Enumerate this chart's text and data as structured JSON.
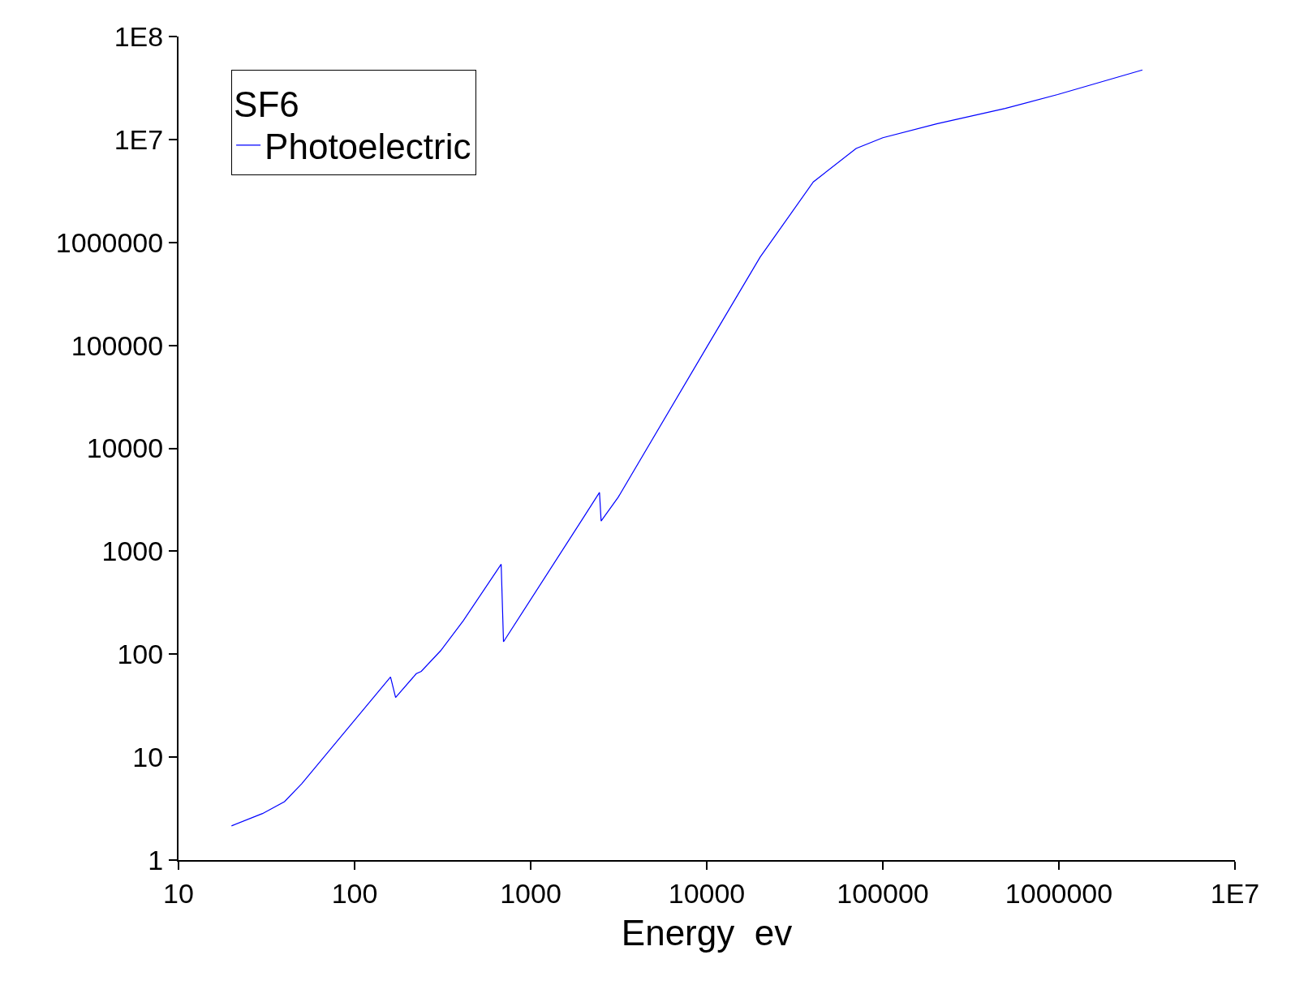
{
  "chart_data": {
    "type": "line",
    "xlabel": "Energy  ev",
    "legend_title": "SF6",
    "legend": "top left",
    "log": "xy",
    "marker": "none",
    "line_style": "solid",
    "xlim": [
      10,
      10000000
    ],
    "ylim": [
      1,
      100000000
    ],
    "xticks": [
      10,
      100,
      1000,
      10000,
      100000,
      1000000,
      {
        "value": 10000000,
        "label": "1E7"
      }
    ],
    "yticks": [
      1,
      10,
      100,
      1000,
      10000,
      100000,
      1000000,
      {
        "value": 10000000,
        "label": "1E7"
      },
      {
        "value": 100000000,
        "label": "1E8"
      }
    ],
    "series": [
      {
        "name": "Photoelectric",
        "color": "#0000ff",
        "x": [
          20,
          30,
          40,
          50,
          160,
          171,
          224,
          239,
          308,
          414,
          680,
          701,
          1950,
          2460,
          2513,
          3140,
          10000,
          20100,
          40300,
          70500,
          100000,
          202000,
          496000,
          984000,
          2980000
        ],
        "values": [
          2.15,
          2.83,
          3.7,
          5.5,
          60,
          38,
          64.6,
          68,
          108,
          211,
          747,
          132,
          2000,
          3725,
          1967,
          3340,
          96000,
          720000,
          3870000,
          8180000,
          10400000,
          14200000,
          20000000,
          27300000,
          47300000
        ]
      }
    ]
  }
}
